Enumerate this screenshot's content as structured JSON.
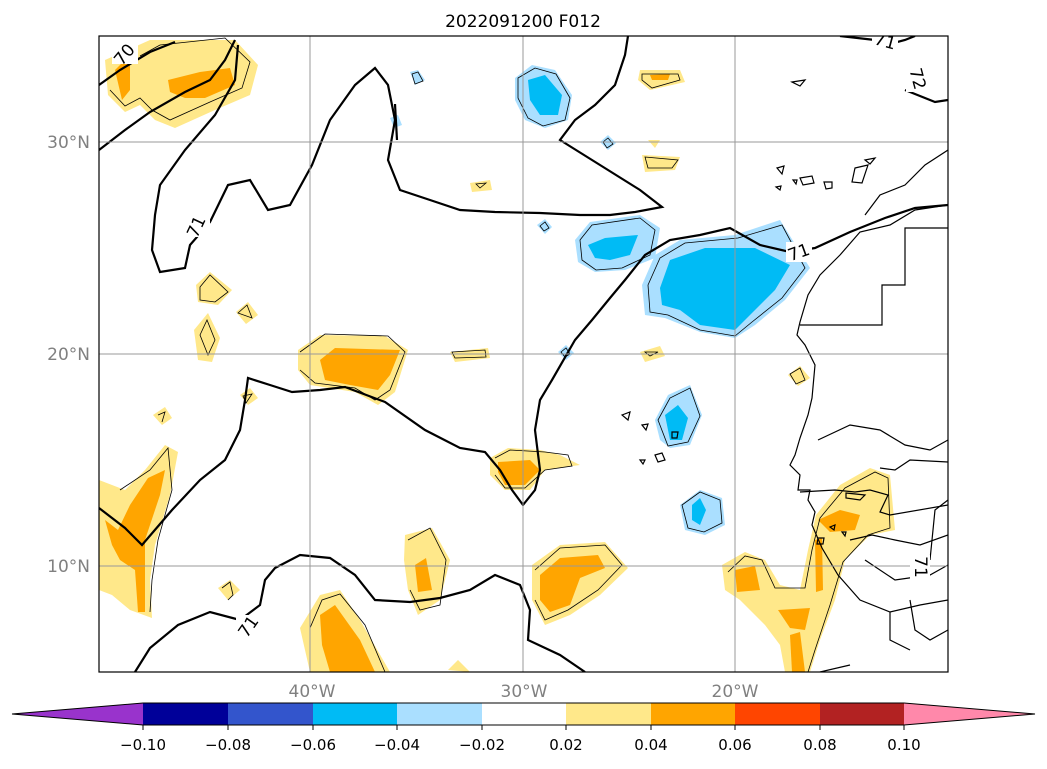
{
  "title": "2022091200 F012",
  "map": {
    "lat_labels": [
      "30°N",
      "20°N",
      "10°N"
    ],
    "lon_labels": [
      "40°W",
      "30°W",
      "20°W"
    ],
    "contour_labels": [
      "70",
      "71",
      "71",
      "71",
      "71",
      "72",
      "71"
    ]
  },
  "colorbar": {
    "colors": [
      "#9933cc",
      "#000099",
      "#3355cc",
      "#00bbf5",
      "#aadfff",
      "#ffffff",
      "#ffe88a",
      "#ffa500",
      "#ff4500",
      "#b22222",
      "#ff88aa"
    ],
    "ticks": [
      "−0.10",
      "−0.08",
      "−0.06",
      "−0.04",
      "−0.02",
      "0.02",
      "0.04",
      "0.06",
      "0.08",
      "0.10"
    ]
  }
}
